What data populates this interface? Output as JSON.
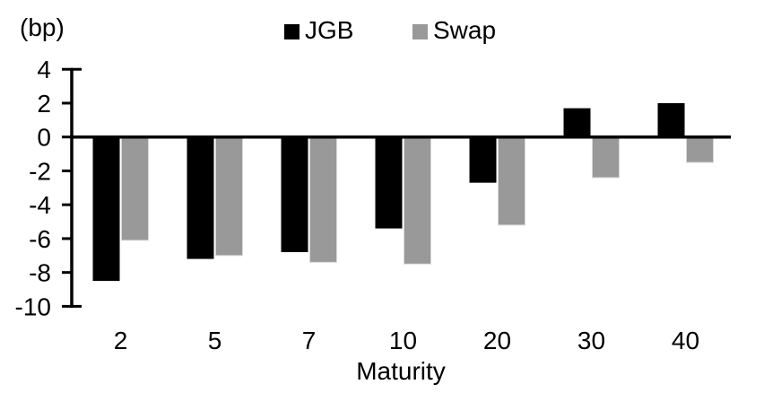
{
  "chart_data": {
    "type": "bar",
    "title": "",
    "unit_label": "(bp)",
    "xlabel": "Maturity",
    "categories": [
      "2",
      "5",
      "7",
      "10",
      "20",
      "30",
      "40"
    ],
    "series": [
      {
        "name": "JGB",
        "color": "#000000",
        "values": [
          -8.5,
          -7.2,
          -6.8,
          -5.4,
          -2.7,
          1.7,
          2.0
        ]
      },
      {
        "name": "Swap",
        "color": "#999999",
        "values": [
          -6.1,
          -7.0,
          -7.4,
          -7.5,
          -5.2,
          -2.4,
          -1.5
        ]
      }
    ],
    "y_ticks": [
      4,
      2,
      0,
      -2,
      -4,
      -6,
      -8,
      -10
    ],
    "ylim": [
      -10,
      4
    ],
    "grid": false,
    "background": "#ffffff",
    "axis_color": "#000000",
    "swap_bar_edge_color": "#d9d9d9",
    "legend_position": "top-center"
  }
}
